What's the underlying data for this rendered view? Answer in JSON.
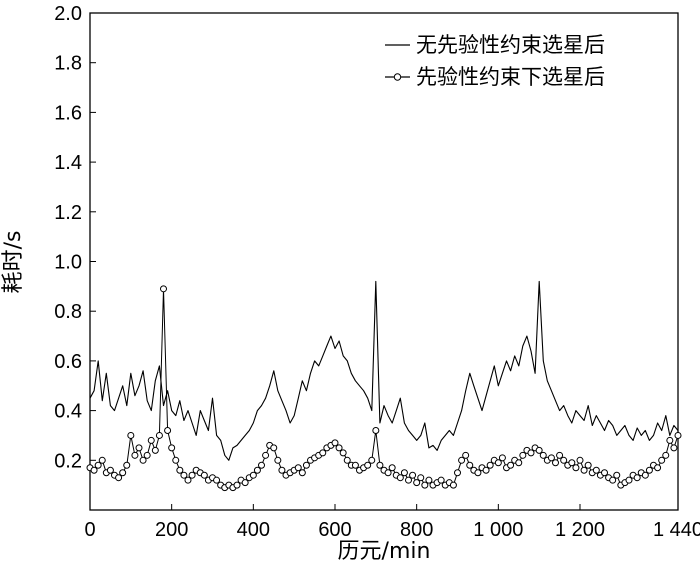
{
  "chart_data": {
    "type": "line",
    "title": "",
    "xlabel": "历元/min",
    "ylabel": "耗时/s",
    "xlim": [
      0,
      1440
    ],
    "ylim": [
      0,
      2.0
    ],
    "x_ticks": [
      0,
      200,
      400,
      600,
      800,
      1000,
      1200,
      1440
    ],
    "x_tick_labels": [
      "0",
      "200",
      "400",
      "600",
      "800",
      "1 000",
      "1 200",
      "1 440"
    ],
    "y_ticks": [
      0.2,
      0.4,
      0.6,
      0.8,
      1.0,
      1.2,
      1.4,
      1.6,
      1.8,
      2.0
    ],
    "y_tick_labels": [
      "0.2",
      "0.4",
      "0.6",
      "0.8",
      "1.0",
      "1.2",
      "1.4",
      "1.6",
      "1.8",
      "2.0"
    ],
    "grid": false,
    "legend_position": "top-right",
    "series": [
      {
        "name": "无先验性约束选星后",
        "style": "line",
        "color": "#000000",
        "x": [
          0,
          10,
          20,
          30,
          40,
          50,
          60,
          70,
          80,
          90,
          100,
          110,
          120,
          130,
          140,
          150,
          160,
          170,
          180,
          190,
          200,
          210,
          220,
          230,
          240,
          250,
          260,
          270,
          280,
          290,
          300,
          310,
          320,
          330,
          340,
          350,
          360,
          370,
          380,
          390,
          400,
          410,
          420,
          430,
          440,
          450,
          460,
          470,
          480,
          490,
          500,
          510,
          520,
          530,
          540,
          550,
          560,
          570,
          580,
          590,
          600,
          610,
          620,
          630,
          640,
          650,
          660,
          670,
          680,
          690,
          700,
          710,
          720,
          730,
          740,
          750,
          760,
          770,
          780,
          790,
          800,
          810,
          820,
          830,
          840,
          850,
          860,
          870,
          880,
          890,
          900,
          910,
          920,
          930,
          940,
          950,
          960,
          970,
          980,
          990,
          1000,
          1010,
          1020,
          1030,
          1040,
          1050,
          1060,
          1070,
          1080,
          1090,
          1100,
          1110,
          1120,
          1130,
          1140,
          1150,
          1160,
          1170,
          1180,
          1190,
          1200,
          1210,
          1220,
          1230,
          1240,
          1250,
          1260,
          1270,
          1280,
          1290,
          1300,
          1310,
          1320,
          1330,
          1340,
          1350,
          1360,
          1370,
          1380,
          1390,
          1400,
          1410,
          1420,
          1430,
          1440
        ],
        "values": [
          0.45,
          0.48,
          0.6,
          0.44,
          0.55,
          0.42,
          0.4,
          0.45,
          0.5,
          0.42,
          0.55,
          0.46,
          0.5,
          0.56,
          0.44,
          0.4,
          0.52,
          0.58,
          0.42,
          0.48,
          0.4,
          0.38,
          0.44,
          0.36,
          0.4,
          0.35,
          0.3,
          0.4,
          0.36,
          0.32,
          0.45,
          0.3,
          0.28,
          0.22,
          0.2,
          0.25,
          0.26,
          0.28,
          0.3,
          0.32,
          0.35,
          0.4,
          0.42,
          0.45,
          0.5,
          0.56,
          0.48,
          0.44,
          0.4,
          0.35,
          0.38,
          0.45,
          0.52,
          0.48,
          0.55,
          0.6,
          0.58,
          0.62,
          0.66,
          0.7,
          0.65,
          0.68,
          0.62,
          0.6,
          0.55,
          0.52,
          0.5,
          0.48,
          0.45,
          0.4,
          0.92,
          0.35,
          0.42,
          0.38,
          0.35,
          0.4,
          0.45,
          0.35,
          0.32,
          0.3,
          0.28,
          0.3,
          0.35,
          0.25,
          0.26,
          0.24,
          0.28,
          0.3,
          0.32,
          0.3,
          0.35,
          0.4,
          0.48,
          0.55,
          0.5,
          0.45,
          0.4,
          0.46,
          0.52,
          0.58,
          0.5,
          0.55,
          0.6,
          0.56,
          0.62,
          0.58,
          0.66,
          0.7,
          0.64,
          0.55,
          0.92,
          0.6,
          0.52,
          0.48,
          0.44,
          0.4,
          0.42,
          0.38,
          0.35,
          0.4,
          0.38,
          0.36,
          0.42,
          0.34,
          0.38,
          0.35,
          0.32,
          0.36,
          0.34,
          0.3,
          0.32,
          0.34,
          0.3,
          0.28,
          0.33,
          0.3,
          0.32,
          0.28,
          0.3,
          0.35,
          0.32,
          0.38,
          0.3,
          0.34,
          0.32
        ]
      },
      {
        "name": "先验性约束下选星后",
        "style": "line-marker",
        "marker": "circle",
        "color": "#000000",
        "x": [
          0,
          10,
          20,
          30,
          40,
          50,
          60,
          70,
          80,
          90,
          100,
          110,
          120,
          130,
          140,
          150,
          160,
          170,
          180,
          190,
          200,
          210,
          220,
          230,
          240,
          250,
          260,
          270,
          280,
          290,
          300,
          310,
          320,
          330,
          340,
          350,
          360,
          370,
          380,
          390,
          400,
          410,
          420,
          430,
          440,
          450,
          460,
          470,
          480,
          490,
          500,
          510,
          520,
          530,
          540,
          550,
          560,
          570,
          580,
          590,
          600,
          610,
          620,
          630,
          640,
          650,
          660,
          670,
          680,
          690,
          700,
          710,
          720,
          730,
          740,
          750,
          760,
          770,
          780,
          790,
          800,
          810,
          820,
          830,
          840,
          850,
          860,
          870,
          880,
          890,
          900,
          910,
          920,
          930,
          940,
          950,
          960,
          970,
          980,
          990,
          1000,
          1010,
          1020,
          1030,
          1040,
          1050,
          1060,
          1070,
          1080,
          1090,
          1100,
          1110,
          1120,
          1130,
          1140,
          1150,
          1160,
          1170,
          1180,
          1190,
          1200,
          1210,
          1220,
          1230,
          1240,
          1250,
          1260,
          1270,
          1280,
          1290,
          1300,
          1310,
          1320,
          1330,
          1340,
          1350,
          1360,
          1370,
          1380,
          1390,
          1400,
          1410,
          1420,
          1430,
          1440
        ],
        "values": [
          0.17,
          0.16,
          0.18,
          0.2,
          0.15,
          0.16,
          0.14,
          0.13,
          0.15,
          0.18,
          0.3,
          0.22,
          0.25,
          0.2,
          0.22,
          0.28,
          0.24,
          0.3,
          0.89,
          0.32,
          0.25,
          0.2,
          0.16,
          0.14,
          0.12,
          0.14,
          0.16,
          0.15,
          0.14,
          0.12,
          0.13,
          0.12,
          0.1,
          0.09,
          0.1,
          0.09,
          0.1,
          0.12,
          0.11,
          0.13,
          0.14,
          0.16,
          0.18,
          0.22,
          0.26,
          0.25,
          0.2,
          0.16,
          0.14,
          0.15,
          0.16,
          0.17,
          0.15,
          0.18,
          0.2,
          0.21,
          0.22,
          0.23,
          0.25,
          0.26,
          0.27,
          0.25,
          0.23,
          0.2,
          0.18,
          0.18,
          0.16,
          0.17,
          0.18,
          0.2,
          0.32,
          0.18,
          0.16,
          0.15,
          0.17,
          0.14,
          0.13,
          0.15,
          0.12,
          0.14,
          0.11,
          0.13,
          0.1,
          0.12,
          0.1,
          0.11,
          0.12,
          0.1,
          0.11,
          0.1,
          0.15,
          0.2,
          0.22,
          0.18,
          0.16,
          0.15,
          0.17,
          0.16,
          0.18,
          0.2,
          0.19,
          0.21,
          0.17,
          0.18,
          0.2,
          0.19,
          0.22,
          0.24,
          0.23,
          0.25,
          0.24,
          0.22,
          0.2,
          0.21,
          0.19,
          0.22,
          0.2,
          0.18,
          0.19,
          0.17,
          0.2,
          0.16,
          0.18,
          0.15,
          0.16,
          0.14,
          0.15,
          0.13,
          0.12,
          0.14,
          0.1,
          0.11,
          0.12,
          0.14,
          0.13,
          0.15,
          0.14,
          0.16,
          0.18,
          0.17,
          0.2,
          0.22,
          0.28,
          0.25,
          0.3
        ]
      }
    ]
  }
}
